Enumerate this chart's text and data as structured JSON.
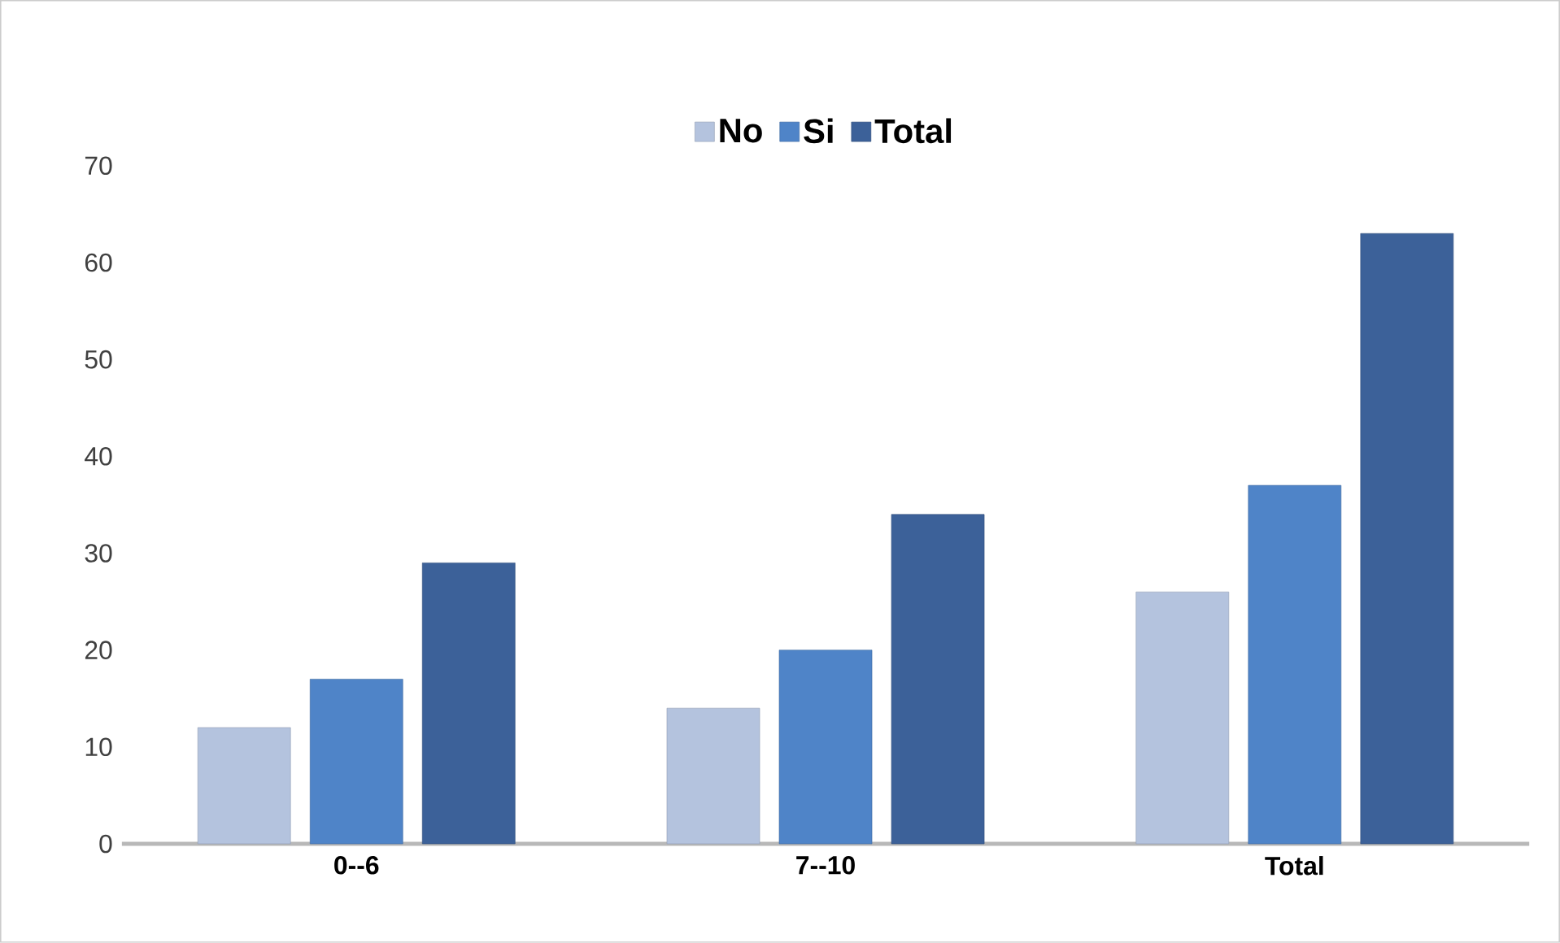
{
  "chart_data": {
    "type": "bar",
    "categories": [
      "0--6",
      "7--10",
      "Total"
    ],
    "series": [
      {
        "name": "No",
        "color": "#b4c3de",
        "values": [
          12,
          14,
          26
        ]
      },
      {
        "name": "Si",
        "color": "#4f84c8",
        "values": [
          17,
          20,
          37
        ]
      },
      {
        "name": "Total",
        "color": "#3c6199",
        "values": [
          29,
          34,
          63
        ]
      }
    ],
    "ylim": [
      0,
      70
    ],
    "yticks": [
      0,
      10,
      20,
      30,
      40,
      50,
      60,
      70
    ],
    "grid": false,
    "legend": "top"
  }
}
